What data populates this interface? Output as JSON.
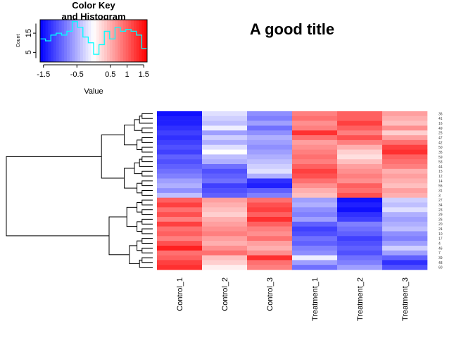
{
  "chart_data": {
    "type": "heatmap",
    "title": "A good title",
    "columns": [
      "Control_1",
      "Control_2",
      "Control_3",
      "Treatment_1",
      "Treatment_2",
      "Treatment_3"
    ],
    "row_labels": [
      "36",
      "41",
      "16",
      "49",
      "25",
      "47",
      "42",
      "50",
      "35",
      "59",
      "53",
      "44",
      "15",
      "12",
      "14",
      "55",
      "31",
      "3",
      "27",
      "34",
      "23",
      "29",
      "26",
      "20",
      "24",
      "10",
      "17",
      "4",
      "46",
      "7",
      "39",
      "48",
      "60"
    ],
    "values": [
      [
        -1.5,
        -0.2,
        -0.7,
        0.8,
        1.0,
        0.6
      ],
      [
        -1.4,
        -0.3,
        -0.8,
        0.9,
        1.0,
        0.5
      ],
      [
        -1.4,
        -0.4,
        -0.6,
        0.7,
        1.2,
        0.4
      ],
      [
        -1.3,
        -0.1,
        -0.9,
        0.8,
        1.0,
        0.7
      ],
      [
        -1.2,
        -0.6,
        -0.7,
        1.3,
        0.8,
        0.3
      ],
      [
        -1.3,
        -0.3,
        -0.5,
        0.9,
        1.1,
        0.6
      ],
      [
        -1.2,
        -0.5,
        -0.6,
        0.6,
        0.8,
        0.9
      ],
      [
        -1.1,
        -0.2,
        -0.7,
        0.7,
        0.5,
        1.2
      ],
      [
        -1.2,
        0.0,
        -0.6,
        0.8,
        0.3,
        1.3
      ],
      [
        -1.0,
        -0.4,
        -0.5,
        0.9,
        0.2,
        1.0
      ],
      [
        -1.1,
        -0.5,
        -0.4,
        0.8,
        0.4,
        0.9
      ],
      [
        -1.0,
        -0.9,
        -0.3,
        1.0,
        0.6,
        0.8
      ],
      [
        -0.9,
        -1.1,
        -0.2,
        1.2,
        0.7,
        0.5
      ],
      [
        -0.8,
        -1.0,
        -0.5,
        1.1,
        0.8,
        0.6
      ],
      [
        -0.6,
        -0.9,
        -1.3,
        0.9,
        0.7,
        0.5
      ],
      [
        -0.5,
        -1.2,
        -1.4,
        0.7,
        1.0,
        0.4
      ],
      [
        -0.7,
        -1.1,
        -1.0,
        0.5,
        0.9,
        0.6
      ],
      [
        -0.4,
        -1.0,
        -0.8,
        0.4,
        1.1,
        0.5
      ],
      [
        1.0,
        0.6,
        0.9,
        -0.6,
        -1.5,
        -0.3
      ],
      [
        1.2,
        0.5,
        1.1,
        -0.5,
        -1.4,
        -0.4
      ],
      [
        0.9,
        0.4,
        1.2,
        -0.7,
        -1.5,
        -0.2
      ],
      [
        1.1,
        0.3,
        1.0,
        -0.8,
        -1.3,
        -0.5
      ],
      [
        0.8,
        0.5,
        1.3,
        -0.6,
        -1.2,
        -0.6
      ],
      [
        1.2,
        0.6,
        1.0,
        -1.0,
        -0.8,
        -0.5
      ],
      [
        0.9,
        0.7,
        0.8,
        -1.2,
        -0.9,
        -0.4
      ],
      [
        1.0,
        0.8,
        0.7,
        -1.1,
        -1.0,
        -0.7
      ],
      [
        0.8,
        0.6,
        0.9,
        -0.9,
        -1.2,
        -0.8
      ],
      [
        1.1,
        0.5,
        0.6,
        -1.0,
        -1.1,
        -0.6
      ],
      [
        1.4,
        0.7,
        0.5,
        -0.8,
        -1.0,
        -0.3
      ],
      [
        0.9,
        0.9,
        0.7,
        -0.7,
        -1.1,
        -0.6
      ],
      [
        1.0,
        0.4,
        1.3,
        -0.1,
        -0.9,
        -1.0
      ],
      [
        1.2,
        0.3,
        0.9,
        -0.6,
        -0.8,
        -1.3
      ],
      [
        1.3,
        0.1,
        0.8,
        -0.9,
        -0.6,
        -1.1
      ]
    ],
    "color_key": {
      "title_line1": "Color Key",
      "title_line2": "and Histogram",
      "xlabel": "Value",
      "ylabel": "Count",
      "x_ticks": [
        "-1.5",
        "-0.5",
        "0.5",
        "1"
      ],
      "x_tick_values": [
        -1.5,
        -0.5,
        0.5,
        1.0
      ],
      "x_end_label": "1.5",
      "y_ticks": [
        "5",
        "15"
      ],
      "y_tick_values": [
        5,
        15
      ],
      "range": [
        -1.6,
        1.6
      ],
      "count_max": 22,
      "histogram": [
        12,
        11,
        14,
        15,
        14,
        16,
        21,
        18,
        13,
        10,
        4,
        9,
        16,
        12,
        18,
        16,
        17,
        16,
        14,
        7
      ],
      "colors": {
        "low": "#0000ff",
        "mid": "#ffffff",
        "high": "#ff0000",
        "histogram_line": "#00ffff"
      }
    }
  }
}
